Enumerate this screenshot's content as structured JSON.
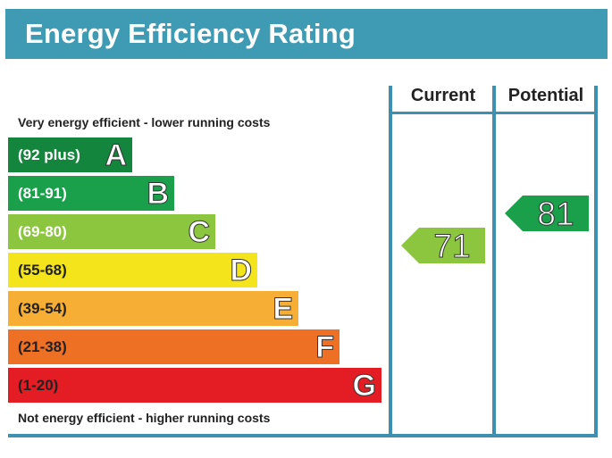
{
  "chart_data": {
    "type": "bar",
    "title": "Energy Efficiency Rating",
    "top_note": "Very energy efficient - lower running costs",
    "bottom_note": "Not energy efficient - higher running costs",
    "bands": [
      {
        "letter": "A",
        "range": "(92 plus)",
        "color": "#13853c",
        "text_dark": false
      },
      {
        "letter": "B",
        "range": "(81-91)",
        "color": "#1aa04a",
        "text_dark": false
      },
      {
        "letter": "C",
        "range": "(69-80)",
        "color": "#8cc63f",
        "text_dark": false
      },
      {
        "letter": "D",
        "range": "(55-68)",
        "color": "#f4e41c",
        "text_dark": true
      },
      {
        "letter": "E",
        "range": "(39-54)",
        "color": "#f6ae35",
        "text_dark": true
      },
      {
        "letter": "F",
        "range": "(21-38)",
        "color": "#ee7025",
        "text_dark": true
      },
      {
        "letter": "G",
        "range": "(1-20)",
        "color": "#e31d23",
        "text_dark": true
      }
    ],
    "columns": [
      "Current",
      "Potential"
    ],
    "ratings": {
      "current": {
        "value": "71",
        "band": "C",
        "color": "#8cc63f"
      },
      "potential": {
        "value": "81",
        "band": "B",
        "color": "#1aa04a"
      }
    }
  },
  "colors": {
    "header": "#3f9bb3",
    "frame": "#3f8fb0"
  }
}
